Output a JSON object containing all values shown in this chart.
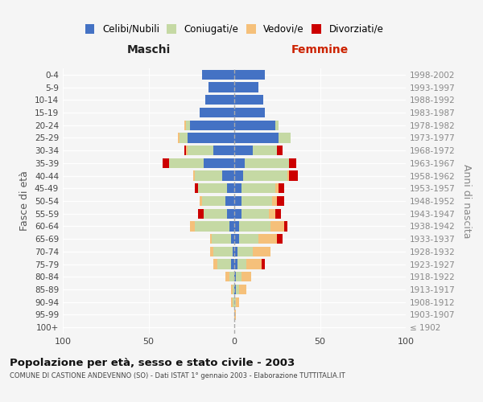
{
  "age_groups": [
    "100+",
    "95-99",
    "90-94",
    "85-89",
    "80-84",
    "75-79",
    "70-74",
    "65-69",
    "60-64",
    "55-59",
    "50-54",
    "45-49",
    "40-44",
    "35-39",
    "30-34",
    "25-29",
    "20-24",
    "15-19",
    "10-14",
    "5-9",
    "0-4"
  ],
  "birth_years": [
    "≤ 1902",
    "1903-1907",
    "1908-1912",
    "1913-1917",
    "1918-1922",
    "1923-1927",
    "1928-1932",
    "1933-1937",
    "1938-1942",
    "1943-1947",
    "1948-1952",
    "1953-1957",
    "1958-1962",
    "1963-1967",
    "1968-1972",
    "1973-1977",
    "1978-1982",
    "1983-1987",
    "1988-1992",
    "1993-1997",
    "1998-2002"
  ],
  "maschi_celibi": [
    0,
    0,
    0,
    0,
    0,
    2,
    1,
    2,
    3,
    4,
    5,
    4,
    7,
    18,
    12,
    27,
    26,
    20,
    17,
    15,
    19
  ],
  "maschi_coniugati": [
    0,
    0,
    1,
    1,
    3,
    8,
    11,
    11,
    20,
    14,
    14,
    17,
    16,
    20,
    15,
    5,
    2,
    0,
    0,
    0,
    0
  ],
  "maschi_vedovi": [
    0,
    0,
    1,
    1,
    2,
    2,
    2,
    1,
    3,
    0,
    1,
    0,
    1,
    0,
    1,
    1,
    1,
    0,
    0,
    0,
    0
  ],
  "maschi_divorziati": [
    0,
    0,
    0,
    0,
    0,
    0,
    0,
    0,
    0,
    3,
    0,
    2,
    0,
    4,
    1,
    0,
    0,
    0,
    0,
    0,
    0
  ],
  "femmine_nubili": [
    0,
    0,
    0,
    1,
    1,
    2,
    2,
    3,
    3,
    4,
    4,
    4,
    5,
    6,
    11,
    26,
    24,
    18,
    17,
    14,
    18
  ],
  "femmine_coniugate": [
    0,
    0,
    1,
    2,
    3,
    5,
    9,
    11,
    18,
    16,
    18,
    20,
    26,
    26,
    14,
    7,
    2,
    0,
    0,
    0,
    0
  ],
  "femmine_vedove": [
    0,
    1,
    2,
    4,
    6,
    9,
    10,
    11,
    8,
    4,
    3,
    2,
    1,
    0,
    0,
    0,
    0,
    0,
    0,
    0,
    0
  ],
  "femmine_divorziate": [
    0,
    0,
    0,
    0,
    0,
    2,
    0,
    3,
    2,
    3,
    4,
    3,
    5,
    4,
    3,
    0,
    0,
    0,
    0,
    0,
    0
  ],
  "color_celibi": "#4472C4",
  "color_coniugati": "#C5D9A4",
  "color_vedovi": "#F5C07A",
  "color_divorziati": "#CC0000",
  "xlim": 100,
  "title_main": "Popolazione per età, sesso e stato civile - 2003",
  "title_sub": "COMUNE DI CASTIONE ANDEVENNO (SO) - Dati ISTAT 1° gennaio 2003 - Elaborazione TUTTITALIA.IT",
  "ylabel_left": "Fasce di età",
  "ylabel_right": "Anni di nascita",
  "header_maschi": "Maschi",
  "header_femmine": "Femmine",
  "legend_labels": [
    "Celibi/Nubili",
    "Coniugati/e",
    "Vedovi/e",
    "Divorziati/e"
  ],
  "bg_color": "#f5f5f5"
}
